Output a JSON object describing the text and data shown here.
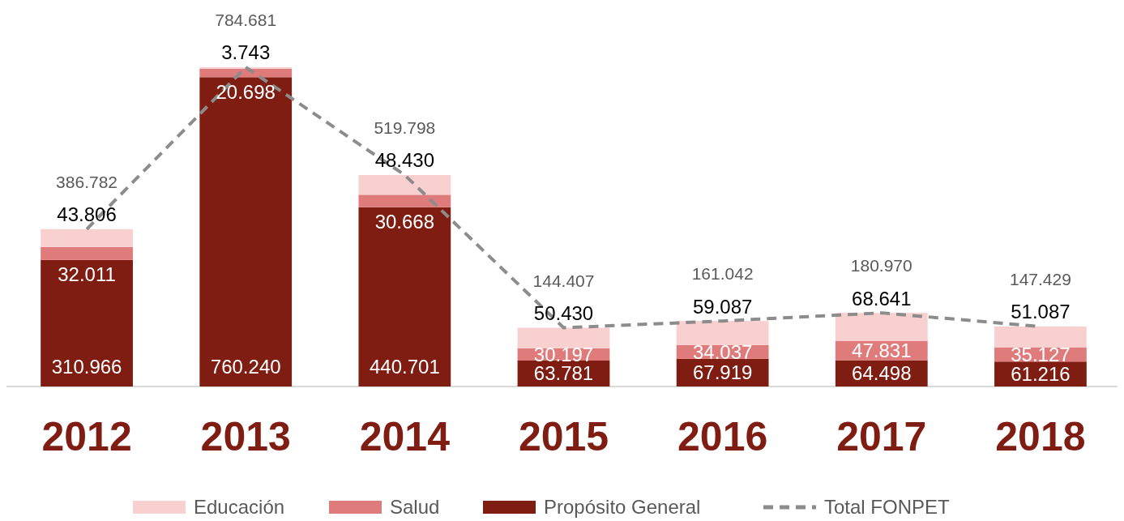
{
  "chart_data": {
    "type": "bar",
    "stacked": true,
    "legend": "bottom",
    "categories": [
      "2012",
      "2013",
      "2014",
      "2015",
      "2016",
      "2017",
      "2018"
    ],
    "series": [
      {
        "name": "Propósito General",
        "color": "#7f1d12",
        "values": [
          310966,
          760240,
          440701,
          63781,
          67919,
          64498,
          61216
        ],
        "value_labels": [
          "310.966",
          "760.240",
          "440.701",
          "63.781",
          "67.919",
          "64.498",
          "61.216"
        ]
      },
      {
        "name": "Salud",
        "color": "#e07b7b",
        "values": [
          32011,
          20698,
          30668,
          30197,
          34037,
          47831,
          35127
        ],
        "value_labels": [
          "32.011",
          "20.698",
          "30.668",
          "30.197",
          "34.037",
          "47.831",
          "35.127"
        ]
      },
      {
        "name": "Educación",
        "color": "#f8d0d0",
        "values": [
          43806,
          3743,
          48430,
          50430,
          59087,
          68641,
          51087
        ],
        "value_labels": [
          "43.806",
          "3.743",
          "48.430",
          "50.430",
          "59.087",
          "68.641",
          "51.087"
        ]
      },
      {
        "name": "Total FONPET",
        "type": "line",
        "color": "#8c8c8c",
        "line_style": "dashed",
        "marker": "none",
        "values": [
          386782,
          784681,
          519798,
          144407,
          161042,
          180970,
          147429
        ],
        "value_labels": [
          "386.782",
          "784.681",
          "519.798",
          "144.407",
          "161.042",
          "180.970",
          "147.429"
        ]
      }
    ]
  }
}
